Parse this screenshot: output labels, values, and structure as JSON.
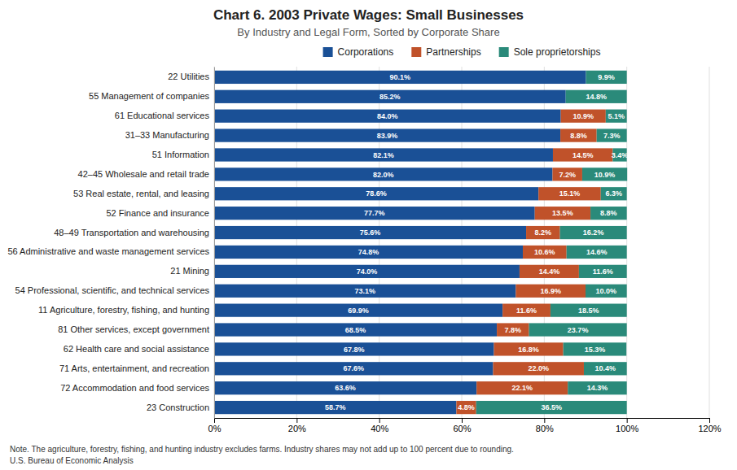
{
  "chart_data": {
    "type": "bar",
    "orientation": "horizontal",
    "stacked": true,
    "title": "Chart 6. 2003 Private Wages: Small Businesses",
    "subtitle": "By Industry and Legal Form, Sorted by Corporate Share",
    "note": "Note. The agriculture, forestry, fishing, and hunting industry excludes farms. Industry shares may not add up to 100 percent due to rounding.",
    "source": "U.S. Bureau of Economic Analysis",
    "categories": [
      "22 Utilities",
      "55 Management of companies",
      "61 Educational services",
      "31–33 Manufacturing",
      "51 Information",
      "42–45 Wholesale and retail trade",
      "53 Real estate, rental, and leasing",
      "52 Finance and insurance",
      "48–49 Transportation and warehousing",
      "56 Administrative and waste management services",
      "21 Mining",
      "54 Professional, scientific, and technical services",
      "11 Agriculture, forestry, fishing, and hunting",
      "81 Other services, except government",
      "62 Health care and social assistance",
      "71 Arts, entertainment, and recreation",
      "72 Accommodation and food services",
      "23 Construction"
    ],
    "series": [
      {
        "name": "Corporations",
        "color": "#1a5096",
        "values": [
          90.1,
          85.2,
          84.0,
          83.9,
          82.1,
          82.0,
          78.6,
          77.7,
          75.6,
          74.8,
          74.0,
          73.1,
          69.9,
          68.5,
          67.8,
          67.6,
          63.6,
          58.7
        ],
        "value_labels": [
          "90.1%",
          "85.2%",
          "84.0%",
          "83.9%",
          "82.1%",
          "82.0%",
          "78.6%",
          "77.7%",
          "75.6%",
          "74.8%",
          "74.0%",
          "73.1%",
          "69.9%",
          "68.5%",
          "67.8%",
          "67.6%",
          "63.6%",
          "58.7%"
        ]
      },
      {
        "name": "Partnerships",
        "color": "#c0522a",
        "values": [
          0.0,
          0.0,
          10.9,
          8.8,
          14.5,
          7.2,
          15.1,
          13.5,
          8.2,
          10.6,
          14.4,
          16.9,
          11.6,
          7.8,
          16.8,
          22.0,
          22.1,
          4.8
        ],
        "value_labels": [
          null,
          null,
          "10.9%",
          "8.8%",
          "14.5%",
          "7.2%",
          "15.1%",
          "13.5%",
          "8.2%",
          "10.6%",
          "14.4%",
          "16.9%",
          "11.6%",
          "7.8%",
          "16.8%",
          "22.0%",
          "22.1%",
          "4.8%"
        ]
      },
      {
        "name": "Sole proprietorships",
        "color": "#2a8a7a",
        "values": [
          9.9,
          14.8,
          5.1,
          7.3,
          3.4,
          10.9,
          6.3,
          8.8,
          16.2,
          14.6,
          11.6,
          10.0,
          18.5,
          23.7,
          15.3,
          10.4,
          14.3,
          36.5
        ],
        "value_labels": [
          "9.9%",
          "14.8%",
          "5.1%",
          "7.3%",
          "3.4%",
          "10.9%",
          "6.3%",
          "8.8%",
          "16.2%",
          "14.6%",
          "11.6%",
          "10.0%",
          "18.5%",
          "23.7%",
          "15.3%",
          "10.4%",
          "14.3%",
          "36.5%"
        ]
      }
    ],
    "xlim": [
      0,
      120
    ],
    "xticks": [
      {
        "value": 0,
        "label": "0%"
      },
      {
        "value": 20,
        "label": "20%"
      },
      {
        "value": 40,
        "label": "40%"
      },
      {
        "value": 60,
        "label": "60%"
      },
      {
        "value": 80,
        "label": "80%"
      },
      {
        "value": 100,
        "label": "100%"
      },
      {
        "value": 120,
        "label": "120%"
      }
    ],
    "grid": true,
    "data_labels": true,
    "legend": "top"
  }
}
